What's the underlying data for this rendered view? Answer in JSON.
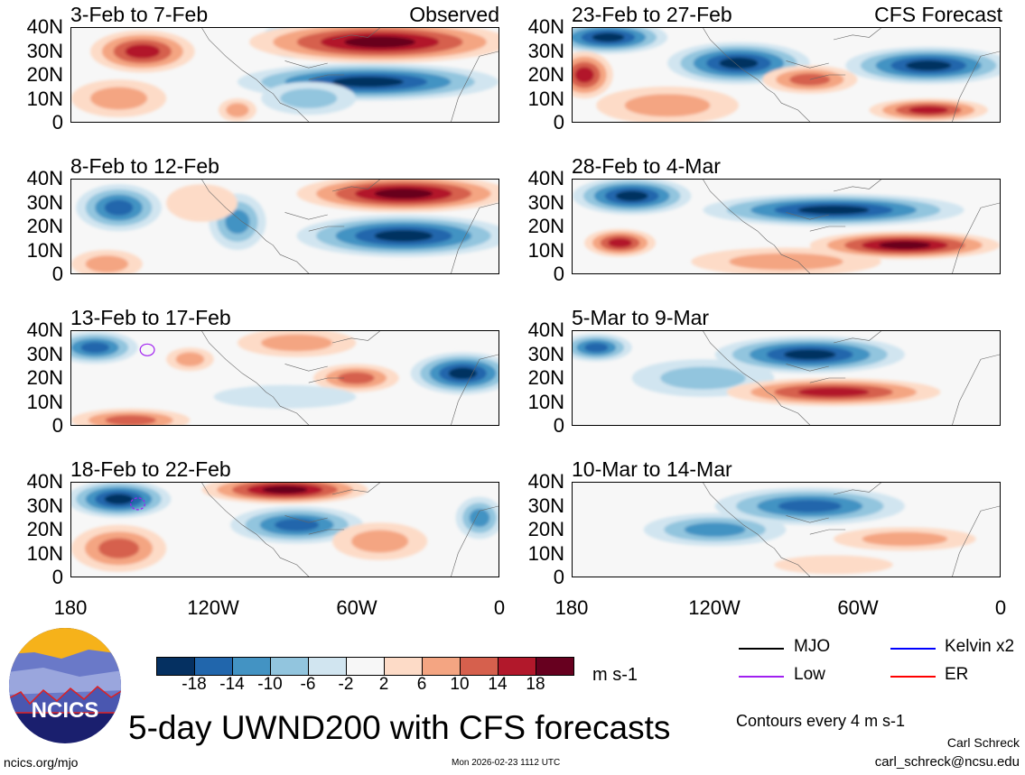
{
  "panels": [
    {
      "title": "3-Feb to 7-Feb",
      "label": "Observed"
    },
    {
      "title": "8-Feb to 12-Feb"
    },
    {
      "title": "13-Feb to 17-Feb"
    },
    {
      "title": "18-Feb to 22-Feb"
    },
    {
      "title": "23-Feb to 27-Feb",
      "label": "CFS Forecast"
    },
    {
      "title": "28-Feb to 4-Mar"
    },
    {
      "title": "5-Mar to 9-Mar"
    },
    {
      "title": "10-Mar to 14-Mar"
    }
  ],
  "y_ticks": [
    "40N",
    "30N",
    "20N",
    "10N",
    "0"
  ],
  "x_ticks": [
    "180",
    "120W",
    "60W",
    "0"
  ],
  "colorbar": {
    "colors": [
      "#053061",
      "#2166ac",
      "#4393c3",
      "#92c5de",
      "#d1e5f0",
      "#f7f7f7",
      "#fddbc7",
      "#f4a582",
      "#d6604d",
      "#b2182b",
      "#67001f"
    ],
    "labels": [
      "-18",
      "-14",
      "-10",
      "-6",
      "-2",
      "2",
      "6",
      "10",
      "14",
      "18"
    ],
    "units": "m s-1"
  },
  "legend": [
    {
      "label": "MJO",
      "color": "#000000"
    },
    {
      "label": "Kelvin x2",
      "color": "#0000ff"
    },
    {
      "label": "Low",
      "color": "#a020f0"
    },
    {
      "label": "ER",
      "color": "#ff0000"
    }
  ],
  "contour_note": "Contours every 4 m s-1",
  "title": "5-day UWND200 with CFS forecasts",
  "logo_text": "NCICS",
  "footer": {
    "url": "ncics.org/mjo",
    "timestamp": "Mon 2026-02-23 1112 UTC",
    "author": "Carl Schreck",
    "email": "carl_schreck@ncsu.edu"
  }
}
